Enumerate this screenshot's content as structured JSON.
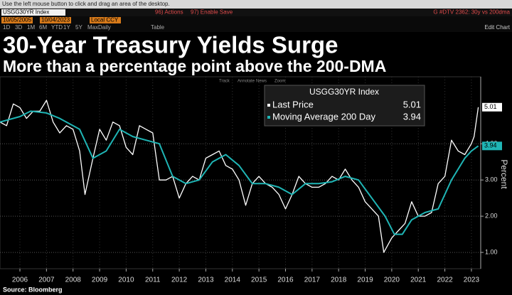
{
  "ui": {
    "window_hint": "Use the left mouse button to click and drag an area of the desktop.",
    "security": "USGG30YR Index",
    "actions": "96) Actions",
    "enable_save": "97) Enable Save",
    "chart_name": "G #DTV 2362: 30y vs 200dma",
    "start_date": "10/05/2005",
    "end_date": "10/04/2023",
    "currency": "Local CCY",
    "periods": [
      "1D",
      "3D",
      "1M",
      "6M",
      "YTD",
      "1Y",
      "5Y",
      "Max"
    ],
    "frequency": "Daily",
    "table": "Table",
    "edit_chart": "Edit Chart",
    "tools": [
      "Track",
      "Annotate",
      "News",
      "Zoom"
    ]
  },
  "chart_data": {
    "type": "line",
    "title": "30-Year Treasury Yields Surge",
    "subtitle": "More than a percentage point above the 200-DMA",
    "y_label": "Percent",
    "source": "Source: Bloomberg",
    "legend_title": "USGG30YR Index",
    "xlim": [
      2005.75,
      2023.85
    ],
    "xticks": [
      {
        "value": 2006.5,
        "label": "2006"
      },
      {
        "value": 2007.5,
        "label": "2007"
      },
      {
        "value": 2008.5,
        "label": "2008"
      },
      {
        "value": 2009.5,
        "label": "2009"
      },
      {
        "value": 2010.5,
        "label": "2010"
      },
      {
        "value": 2011.5,
        "label": "2011"
      },
      {
        "value": 2012.5,
        "label": "2012"
      },
      {
        "value": 2013.5,
        "label": "2013"
      },
      {
        "value": 2014.5,
        "label": "2014"
      },
      {
        "value": 2015.5,
        "label": "2015"
      },
      {
        "value": 2016.5,
        "label": "2016"
      },
      {
        "value": 2017.5,
        "label": "2017"
      },
      {
        "value": 2018.5,
        "label": "2018"
      },
      {
        "value": 2019.5,
        "label": "2019"
      },
      {
        "value": 2020.5,
        "label": "2020"
      },
      {
        "value": 2021.5,
        "label": "2021"
      },
      {
        "value": 2022.5,
        "label": "2022"
      },
      {
        "value": 2023.5,
        "label": "2023"
      }
    ],
    "ylim": [
      0.55,
      5.85
    ],
    "yticks": [
      {
        "value": 1,
        "label": "1.00"
      },
      {
        "value": 2,
        "label": "2.00"
      },
      {
        "value": 3,
        "label": "3.00"
      },
      {
        "value": 4,
        "label": "4.00"
      }
    ],
    "grid": true,
    "series": [
      {
        "name": "Last Price",
        "color": "#ffffff",
        "last": 5.01,
        "x": [
          2005.75,
          2006.0,
          2006.25,
          2006.5,
          2006.75,
          2007.0,
          2007.25,
          2007.5,
          2007.75,
          2008.0,
          2008.25,
          2008.5,
          2008.75,
          2008.95,
          2009.25,
          2009.5,
          2009.75,
          2010.0,
          2010.25,
          2010.5,
          2010.75,
          2011.0,
          2011.25,
          2011.5,
          2011.75,
          2012.0,
          2012.25,
          2012.5,
          2012.75,
          2013.0,
          2013.25,
          2013.5,
          2013.75,
          2014.0,
          2014.25,
          2014.5,
          2014.75,
          2015.0,
          2015.25,
          2015.5,
          2015.75,
          2016.0,
          2016.25,
          2016.5,
          2016.75,
          2017.0,
          2017.25,
          2017.5,
          2017.75,
          2018.0,
          2018.25,
          2018.5,
          2018.75,
          2019.0,
          2019.25,
          2019.5,
          2019.75,
          2020.0,
          2020.2,
          2020.5,
          2020.75,
          2021.0,
          2021.25,
          2021.5,
          2021.75,
          2022.0,
          2022.25,
          2022.5,
          2022.75,
          2023.0,
          2023.25,
          2023.5,
          2023.6,
          2023.76
        ],
        "values": [
          4.6,
          4.5,
          5.1,
          5.0,
          4.7,
          4.9,
          4.9,
          5.2,
          4.6,
          4.3,
          4.5,
          4.4,
          3.8,
          2.6,
          3.6,
          4.4,
          4.1,
          4.6,
          4.5,
          3.9,
          3.7,
          4.5,
          4.4,
          4.3,
          3.0,
          3.0,
          3.1,
          2.5,
          2.9,
          3.1,
          3.0,
          3.6,
          3.7,
          3.8,
          3.4,
          3.3,
          3.0,
          2.3,
          2.9,
          3.1,
          2.9,
          2.8,
          2.6,
          2.2,
          2.6,
          3.1,
          2.9,
          2.8,
          2.8,
          2.9,
          3.1,
          3.0,
          3.3,
          3.0,
          2.8,
          2.4,
          2.2,
          2.0,
          1.0,
          1.4,
          1.6,
          1.8,
          2.4,
          2.0,
          2.0,
          2.1,
          2.9,
          3.1,
          4.1,
          3.8,
          3.7,
          4.0,
          4.2,
          5.01
        ]
      },
      {
        "name": "Moving Average 200 Day",
        "color": "#1fb5b5",
        "last": 3.94,
        "x": [
          2005.75,
          2006.5,
          2006.9,
          2007.5,
          2008.0,
          2008.75,
          2009.25,
          2009.75,
          2010.25,
          2010.75,
          2011.25,
          2011.75,
          2012.25,
          2012.75,
          2013.25,
          2013.75,
          2014.25,
          2014.75,
          2015.25,
          2015.75,
          2016.25,
          2016.75,
          2017.25,
          2017.75,
          2018.25,
          2018.75,
          2019.25,
          2019.75,
          2020.25,
          2020.6,
          2020.9,
          2021.25,
          2021.75,
          2022.25,
          2022.75,
          2023.25,
          2023.5,
          2023.76
        ],
        "values": [
          4.6,
          4.75,
          4.9,
          4.85,
          4.7,
          4.4,
          3.6,
          3.8,
          4.4,
          4.2,
          4.1,
          4.0,
          3.1,
          2.9,
          3.0,
          3.5,
          3.7,
          3.4,
          2.9,
          2.9,
          2.8,
          2.6,
          2.9,
          2.9,
          2.95,
          3.1,
          3.0,
          2.5,
          2.0,
          1.5,
          1.5,
          1.9,
          2.1,
          2.2,
          3.0,
          3.6,
          3.8,
          3.94
        ]
      }
    ]
  }
}
